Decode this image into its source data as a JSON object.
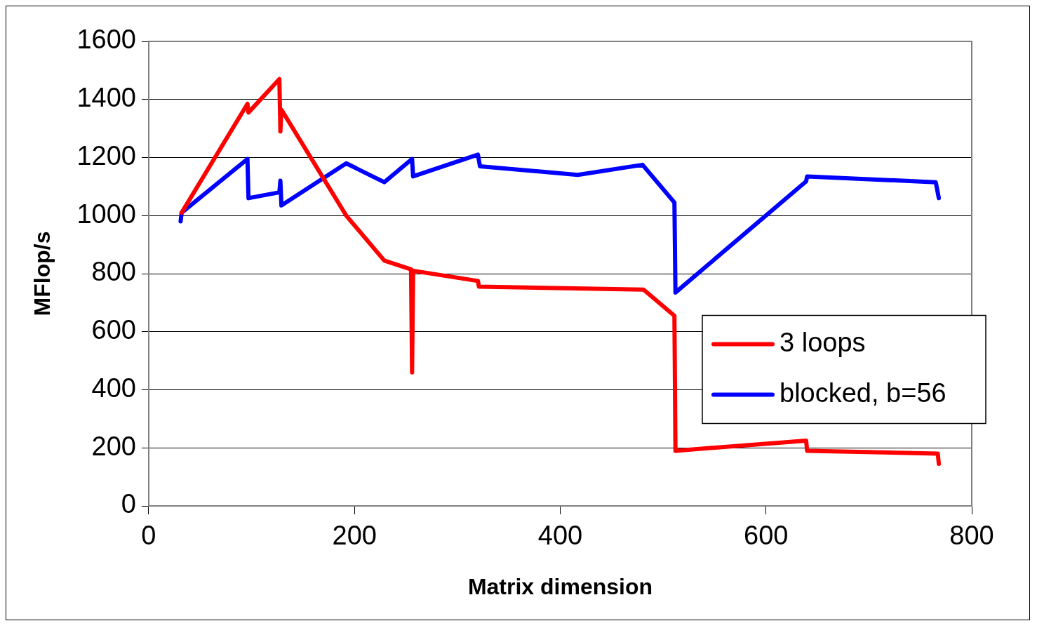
{
  "chart_data": {
    "type": "line",
    "xlabel": "Matrix dimension",
    "ylabel": "MFlop/s",
    "xlim": [
      0,
      800
    ],
    "xticks": [
      0,
      200,
      400,
      600,
      800
    ],
    "ylim": [
      0,
      1600
    ],
    "yticks": [
      0,
      200,
      400,
      600,
      800,
      1000,
      1200,
      1400,
      1600
    ],
    "grid": "y",
    "legend": "right",
    "marker": "none",
    "line_style": "solid",
    "series": [
      {
        "name": "3 loops",
        "color": "#ff0000",
        "x": [
          32,
          96,
          97,
          127,
          128,
          129,
          192,
          229,
          255,
          256,
          257,
          320,
          321,
          481,
          511,
          512,
          639,
          640,
          767,
          768
        ],
        "values": [
          1010,
          1385,
          1355,
          1470,
          1290,
          1365,
          1000,
          845,
          815,
          460,
          810,
          775,
          755,
          745,
          655,
          190,
          225,
          190,
          180,
          145
        ]
      },
      {
        "name": "blocked, b=56",
        "color": "#0000ff",
        "x": [
          31,
          32,
          96,
          97,
          127,
          128,
          129,
          192,
          229,
          256,
          257,
          320,
          322,
          417,
          480,
          511,
          512,
          639,
          640,
          765,
          768
        ],
        "values": [
          980,
          1010,
          1195,
          1060,
          1080,
          1120,
          1035,
          1180,
          1115,
          1195,
          1135,
          1210,
          1170,
          1140,
          1175,
          1045,
          735,
          1118,
          1135,
          1115,
          1060
        ]
      }
    ]
  }
}
